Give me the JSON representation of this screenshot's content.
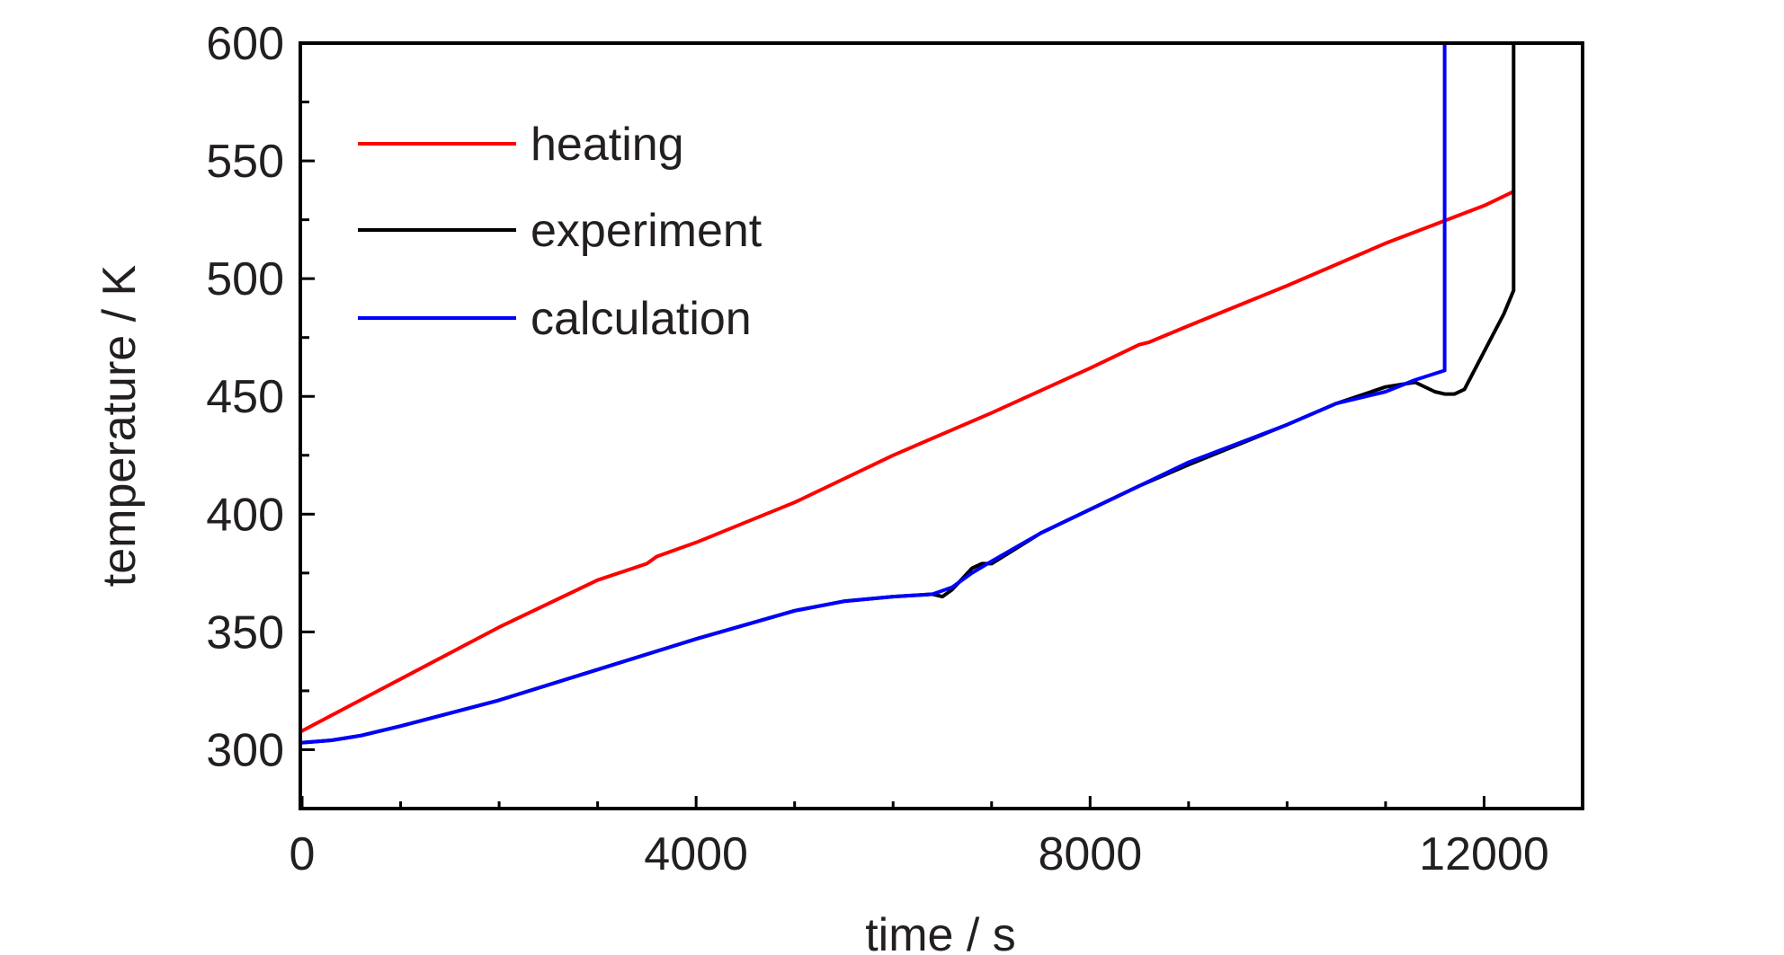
{
  "chart_data": {
    "type": "line",
    "xlabel": "time / s",
    "ylabel": "temperature / K",
    "xlim": [
      0,
      13000
    ],
    "ylim": [
      275,
      600
    ],
    "x_ticks": [
      0,
      4000,
      8000,
      12000
    ],
    "x_tick_labels": [
      "0",
      "4000",
      "8000",
      "12000"
    ],
    "x_minor_ticks": [
      1000,
      2000,
      3000,
      5000,
      6000,
      7000,
      9000,
      10000,
      11000
    ],
    "y_ticks": [
      300,
      350,
      400,
      450,
      500,
      550,
      600
    ],
    "y_tick_labels": [
      "300",
      "350",
      "400",
      "450",
      "500",
      "550",
      "600"
    ],
    "y_minor_ticks": [
      325,
      375,
      425,
      475,
      525,
      575
    ],
    "grid": false,
    "legend_position": "top-left",
    "series": [
      {
        "name": "heating",
        "color": "#ff0000",
        "x": [
          0,
          1000,
          2000,
          3000,
          3500,
          3600,
          4000,
          5000,
          5500,
          6000,
          7000,
          8000,
          8500,
          8600,
          9000,
          10000,
          11000,
          12000,
          12300
        ],
        "y": [
          308,
          330,
          352,
          372,
          379,
          382,
          388,
          405,
          415,
          425,
          443,
          462,
          472,
          473,
          480,
          497,
          515,
          531,
          537
        ]
      },
      {
        "name": "experiment",
        "color": "#000000",
        "x": [
          0,
          300,
          600,
          1000,
          2000,
          3000,
          4000,
          5000,
          5500,
          6000,
          6400,
          6500,
          6600,
          6800,
          6900,
          7000,
          7500,
          8000,
          8500,
          9000,
          10000,
          10500,
          11000,
          11300,
          11500,
          11600,
          11700,
          11800,
          12000,
          12200,
          12300,
          12300
        ],
        "y": [
          303,
          304,
          306,
          310,
          321,
          334,
          347,
          359,
          363,
          365,
          366,
          365,
          368,
          377,
          379,
          379,
          392,
          402,
          412,
          421,
          438,
          447,
          454,
          456,
          452,
          451,
          451,
          453,
          469,
          485,
          495,
          600
        ]
      },
      {
        "name": "calculation",
        "color": "#0000ff",
        "x": [
          0,
          300,
          600,
          1000,
          2000,
          3000,
          4000,
          5000,
          5500,
          6000,
          6400,
          6600,
          6800,
          7000,
          7500,
          8000,
          8500,
          9000,
          10000,
          10500,
          11000,
          11300,
          11600,
          11600
        ],
        "y": [
          303,
          304,
          306,
          310,
          321,
          334,
          347,
          359,
          363,
          365,
          366,
          369,
          375,
          380,
          392,
          402,
          412,
          422,
          438,
          447,
          452,
          457,
          461,
          600
        ]
      }
    ]
  }
}
